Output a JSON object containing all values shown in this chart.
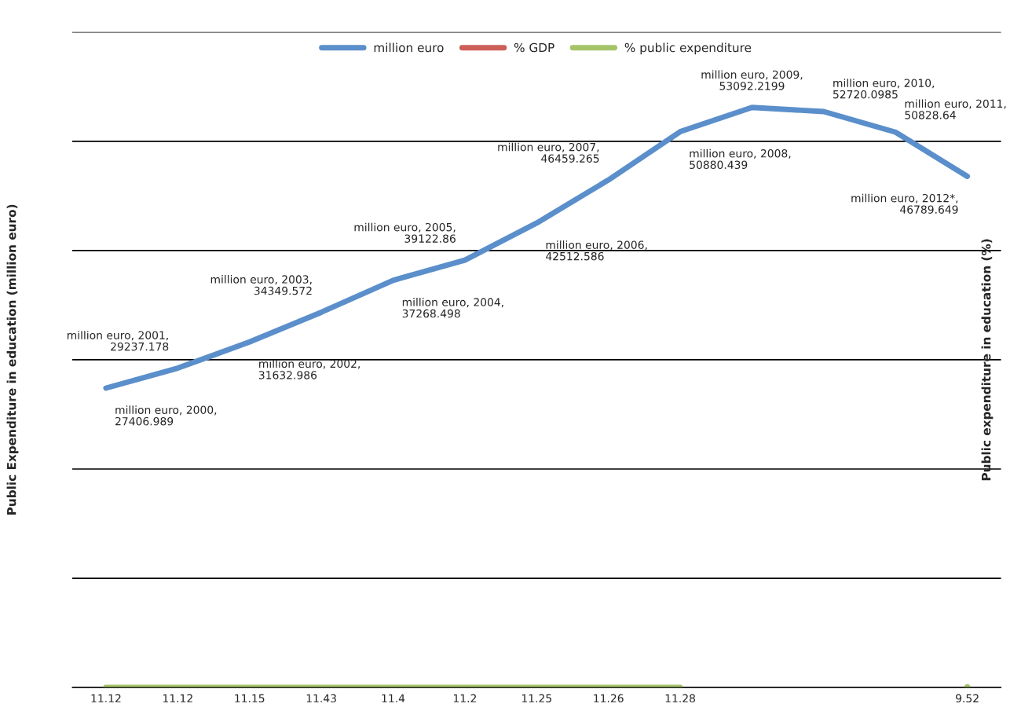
{
  "chart_data": {
    "type": "line",
    "categories": [
      null,
      null,
      null,
      null,
      null,
      null,
      null,
      null,
      null,
      null,
      null,
      null,
      null
    ],
    "ylabel": "Public Expenditure in education (million euro)",
    "y2label": "Public expenditure in education (%)",
    "ylim": [
      0,
      60000
    ],
    "yticks": [
      {
        "value": 0,
        "label": null
      },
      {
        "value": 10000,
        "label": null
      },
      {
        "value": 20000,
        "label": null
      },
      {
        "value": 30000,
        "label": null
      },
      {
        "value": 40000,
        "label": null
      },
      {
        "value": 50000,
        "label": null
      },
      {
        "value": 60000,
        "label": null
      }
    ],
    "grid": "y",
    "legend": "top",
    "line_style": "solid",
    "marker": "none",
    "series": [
      {
        "name": "million euro",
        "color": "#5b8fcb",
        "values": [
          27406.989,
          29237.178,
          31632.986,
          34349.572,
          37268.498,
          39122.86,
          42512.586,
          46459.265,
          50880.439,
          53092.2199,
          52720.0985,
          50828.64,
          46789.649
        ],
        "value_labels": [
          "million euro, 2000,\n27406.989",
          "million euro, 2001,\n29237.178",
          "million euro, 2002,\n31632.986",
          "million euro, 2003,\n34349.572",
          "million euro, 2004,\n37268.498",
          "million euro, 2005,\n39122.86",
          "million euro, 2006,\n42512.586",
          "million euro, 2007,\n46459.265",
          "million euro, 2008,\n50880.439",
          "million euro, 2009,\n53092.2199",
          "million euro, 2010,\n52720.0985",
          "million euro, 2011,\n50828.64",
          "million euro, 2012*,\n46789.649"
        ]
      },
      {
        "name": "% GDP",
        "color": "#cd5f58",
        "values": [
          null,
          null,
          null,
          null,
          null,
          null,
          null,
          null,
          null,
          null,
          null,
          null,
          null
        ]
      },
      {
        "name": "% public expenditure",
        "color": "#a5c46a",
        "values": [
          11.12,
          11.12,
          11.15,
          11.43,
          11.4,
          11.2,
          11.25,
          11.26,
          11.28,
          null,
          null,
          null,
          9.52
        ],
        "value_labels": [
          "11.12",
          "11.12",
          "11.15",
          "11.43",
          "11.4",
          "11.2",
          "11.25",
          "11.26",
          "11.28",
          null,
          null,
          null,
          "9.52"
        ]
      }
    ]
  }
}
